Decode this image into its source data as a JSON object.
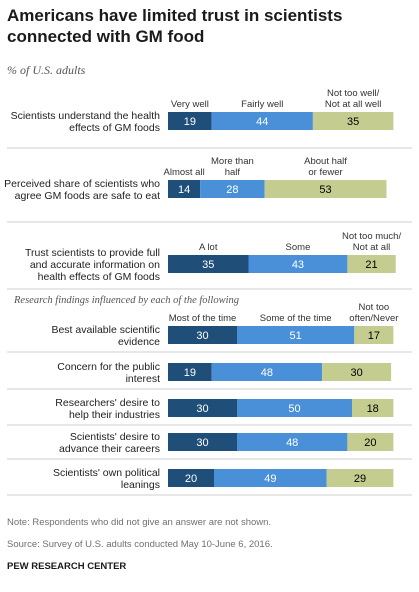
{
  "title": "Americans have limited trust in scientists connected with GM food",
  "subtitle": "% of U.S. adults",
  "note": "Note: Respondents who did not give an answer are not shown.",
  "source": "Source: Survey of U.S. adults conducted May 10-June 6, 2016.",
  "credit": "PEW RESEARCH CENTER",
  "colors": {
    "dark": "#1f4e79",
    "mid": "#4a90d9",
    "light": "#c5cc8f",
    "label_light": "#000000"
  },
  "chart_data": {
    "type": "bar",
    "orientation": "horizontal",
    "stacked": true,
    "section_label": "Research findings influenced by each of the following",
    "groups": [
      {
        "category": "Scientists understand the health effects of GM foods",
        "segments": [
          {
            "name": "Very well",
            "value": 19
          },
          {
            "name": "Fairly well",
            "value": 44
          },
          {
            "name": "Not too well/ Not at all well",
            "value": 35
          }
        ]
      },
      {
        "category": "Perceived share of scientists who agree GM foods are safe to eat",
        "segments": [
          {
            "name": "Almost all",
            "value": 14
          },
          {
            "name": "More than half",
            "value": 28
          },
          {
            "name": "About half or fewer",
            "value": 53
          }
        ]
      },
      {
        "category": "Trust scientists to provide full and accurate information on health effects of GM foods",
        "segments": [
          {
            "name": "A lot",
            "value": 35
          },
          {
            "name": "Some",
            "value": 43
          },
          {
            "name": "Not too much/ Not at all",
            "value": 21
          }
        ]
      }
    ],
    "influence_legend": [
      "Most of the time",
      "Some of the time",
      "Not too often/Never"
    ],
    "influence_rows": [
      {
        "category": "Best available scientific evidence",
        "values": [
          30,
          51,
          17
        ]
      },
      {
        "category": "Concern for the public interest",
        "values": [
          19,
          48,
          30
        ]
      },
      {
        "category": "Researchers' desire to help their industries",
        "values": [
          30,
          50,
          18
        ]
      },
      {
        "category": "Scientists' desire to advance their careers",
        "values": [
          30,
          48,
          20
        ]
      },
      {
        "category": "Scientists' own political leanings",
        "values": [
          20,
          49,
          29
        ]
      }
    ]
  }
}
